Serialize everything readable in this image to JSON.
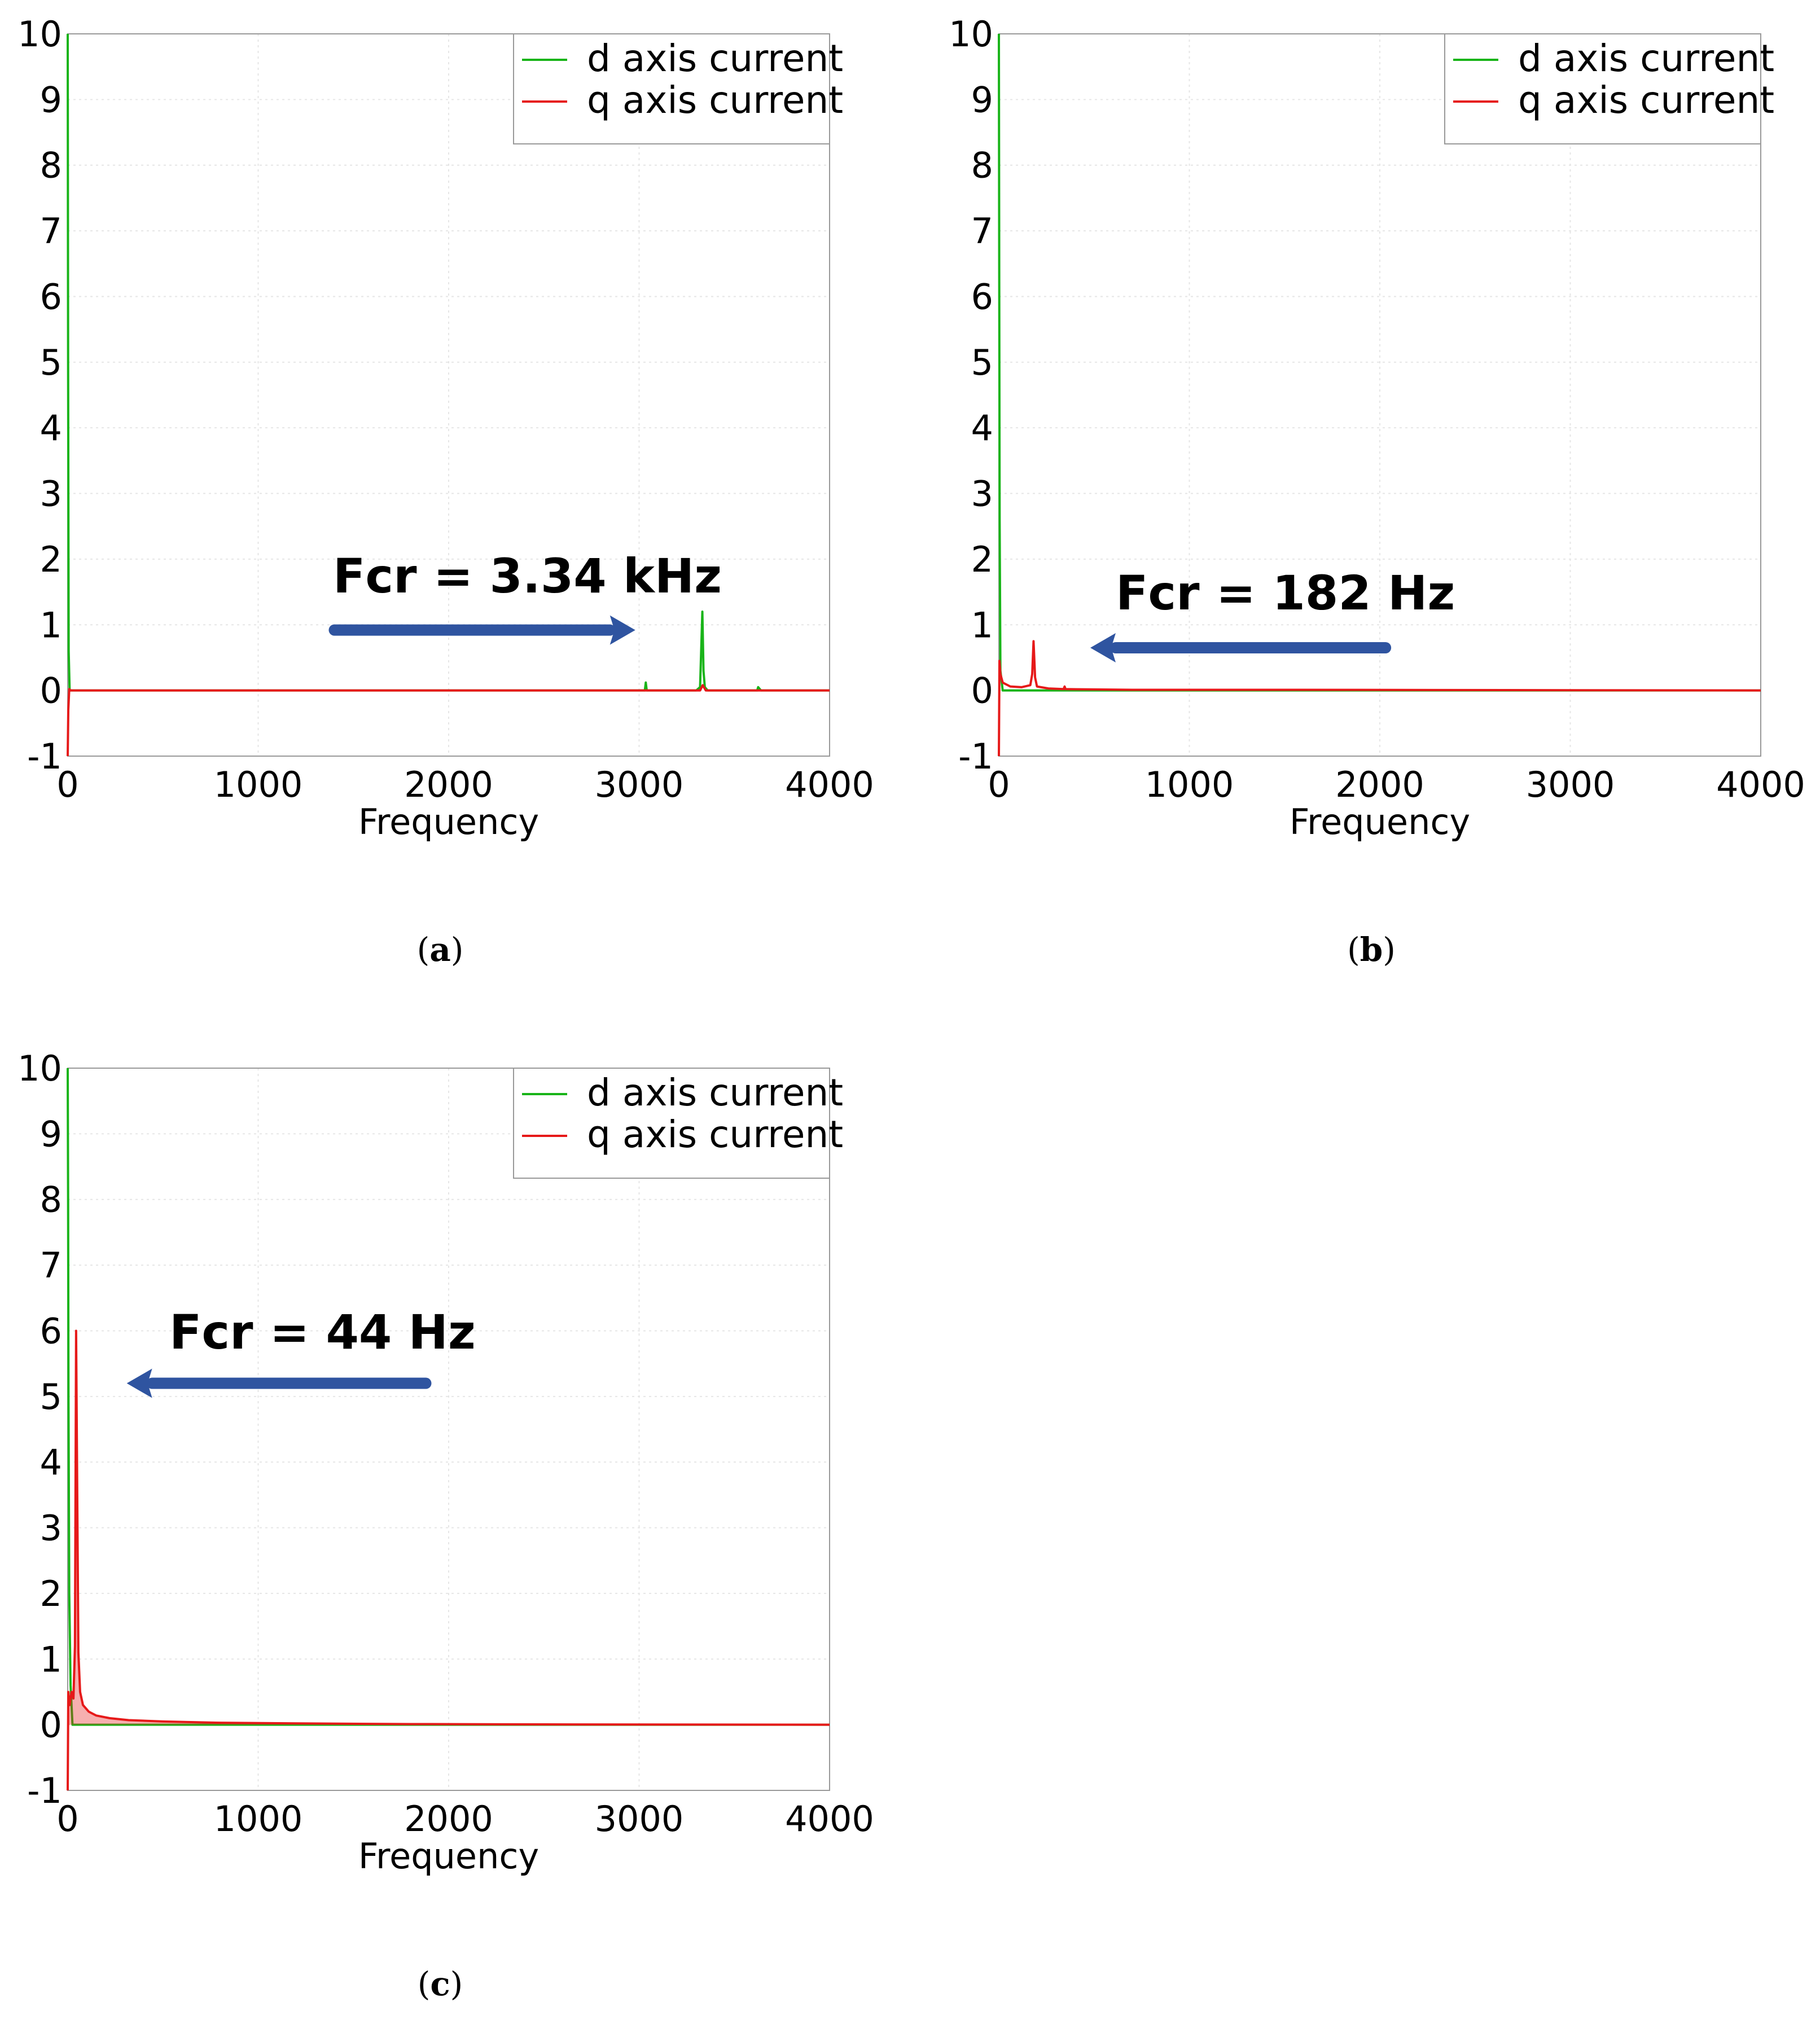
{
  "colors": {
    "d_axis": "#19b419",
    "q_axis": "#e61919",
    "arrow": "#2f54a0",
    "grid": "#e6e6e6",
    "frame": "#999999"
  },
  "chart_data": [
    {
      "panel": "a",
      "type": "line",
      "xlabel": "Frequency",
      "ylabel": "",
      "xlim": [
        0,
        4000
      ],
      "ylim": [
        -1,
        10
      ],
      "x_ticks": [
        0,
        1000,
        2000,
        3000,
        4000
      ],
      "y_ticks": [
        -1,
        0,
        1,
        2,
        3,
        4,
        5,
        6,
        7,
        8,
        9,
        10
      ],
      "grid": true,
      "legend": [
        "d axis current",
        "q axis current"
      ],
      "legend_position": "top-right",
      "annotation": "Fcr = 3.34 kHz",
      "arrow_direction": "right",
      "arrow_from_x": 1400,
      "arrow_to_x": 2980,
      "arrow_y": 0.92,
      "series": [
        {
          "name": "d axis current",
          "color_key": "d_axis",
          "x": [
            0,
            2,
            5,
            10,
            300,
            1200,
            2400,
            3030,
            3035,
            3040,
            3300,
            3320,
            3332,
            3338,
            3345,
            3360,
            3600,
            3620,
            3625,
            3640,
            4000
          ],
          "y": [
            10,
            5,
            0.6,
            0,
            0,
            0,
            0,
            0,
            0.12,
            0,
            0,
            0.05,
            1.2,
            0.3,
            0.05,
            0,
            0,
            0,
            0.05,
            0,
            0
          ]
        },
        {
          "name": "q axis current",
          "color_key": "q_axis",
          "x": [
            0,
            3,
            8,
            15,
            1000,
            3320,
            3334,
            3350,
            4000
          ],
          "y": [
            -1,
            -0.3,
            0.02,
            0,
            0,
            0,
            0.08,
            0,
            0
          ]
        }
      ]
    },
    {
      "panel": "b",
      "type": "line",
      "xlabel": "Frequency",
      "ylabel": "",
      "xlim": [
        0,
        4000
      ],
      "ylim": [
        -1,
        10
      ],
      "x_ticks": [
        0,
        1000,
        2000,
        3000,
        4000
      ],
      "y_ticks": [
        -1,
        0,
        1,
        2,
        3,
        4,
        5,
        6,
        7,
        8,
        9,
        10
      ],
      "grid": true,
      "legend": [
        "d axis current",
        "q axis current"
      ],
      "legend_position": "top-right",
      "annotation": "Fcr = 182 Hz",
      "arrow_direction": "left",
      "arrow_from_x": 2030,
      "arrow_to_x": 480,
      "arrow_y": 0.65,
      "series": [
        {
          "name": "d axis current",
          "color_key": "d_axis",
          "x": [
            0,
            2,
            4,
            8,
            20,
            4000
          ],
          "y": [
            10,
            6,
            2.6,
            0.3,
            0,
            0
          ]
        },
        {
          "name": "q axis current",
          "color_key": "q_axis",
          "x": [
            0,
            3,
            8,
            20,
            60,
            120,
            165,
            175,
            182,
            190,
            200,
            260,
            340,
            345,
            350,
            700,
            1500,
            4000
          ],
          "y": [
            -1,
            0.45,
            0.25,
            0.12,
            0.06,
            0.05,
            0.08,
            0.25,
            0.75,
            0.2,
            0.06,
            0.03,
            0.02,
            0.06,
            0.02,
            0.01,
            0.01,
            0
          ]
        }
      ]
    },
    {
      "panel": "c",
      "type": "line",
      "xlabel": "Frequency",
      "ylabel": "",
      "xlim": [
        0,
        4000
      ],
      "ylim": [
        -1,
        10
      ],
      "x_ticks": [
        0,
        1000,
        2000,
        3000,
        4000
      ],
      "y_ticks": [
        -1,
        0,
        1,
        2,
        3,
        4,
        5,
        6,
        7,
        8,
        9,
        10
      ],
      "grid": true,
      "legend": [
        "d axis current",
        "q axis current"
      ],
      "legend_position": "top-right",
      "annotation": "Fcr = 44 Hz",
      "arrow_direction": "left",
      "arrow_from_x": 1880,
      "arrow_to_x": 310,
      "arrow_y": 5.2,
      "series": [
        {
          "name": "d axis current",
          "color_key": "d_axis",
          "x": [
            0,
            2,
            4,
            8,
            15,
            25,
            4000
          ],
          "y": [
            10,
            8,
            5,
            2,
            0.6,
            0,
            0
          ]
        },
        {
          "name": "q axis current",
          "color_key": "q_axis",
          "x": [
            0,
            3,
            10,
            20,
            30,
            38,
            44,
            50,
            56,
            65,
            80,
            110,
            150,
            220,
            320,
            500,
            800,
            1200,
            1800,
            2500,
            4000
          ],
          "y": [
            -1,
            0.5,
            0.3,
            0.5,
            0.4,
            1.2,
            6.0,
            3.5,
            1.1,
            0.5,
            0.3,
            0.2,
            0.14,
            0.1,
            0.07,
            0.05,
            0.03,
            0.02,
            0.01,
            0.005,
            0
          ]
        }
      ]
    }
  ]
}
